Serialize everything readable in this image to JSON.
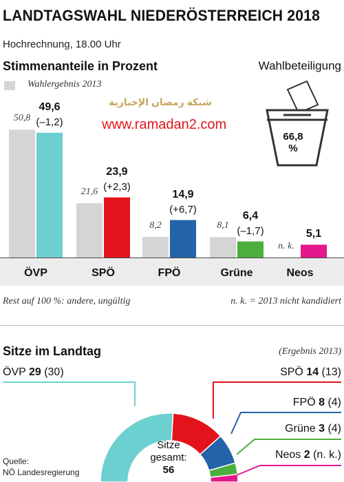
{
  "header": {
    "title": "LANDTAGSWAHL NIEDERÖSTERREICH 2018",
    "subtitle": "Hochrechnung, 18.00 Uhr",
    "section_votes": "Stimmenanteile in Prozent",
    "turnout_label": "Wahlbeteiligung",
    "turnout_value": "66,8",
    "turnout_unit": "%",
    "legend_previous": "Wahlergebnis 2013"
  },
  "watermark": {
    "arabic": "شبكة رمضان الإخبارية",
    "url": "www.ramadan2.com"
  },
  "chart_data": [
    {
      "type": "bar",
      "title": "Stimmenanteile in Prozent",
      "categories": [
        "ÖVP",
        "SPÖ",
        "FPÖ",
        "Grüne",
        "Neos"
      ],
      "series": [
        {
          "name": "Wahlergebnis 2013",
          "values": [
            50.8,
            21.6,
            8.2,
            8.1,
            null
          ],
          "labels": [
            "50,8",
            "21,6",
            "8,2",
            "8,1",
            "n. k."
          ],
          "color": "#d5d5d5"
        },
        {
          "values": [
            49.6,
            23.9,
            14.9,
            6.4,
            5.1
          ],
          "labels": [
            "49,6",
            "23,9",
            "14,9",
            "6,4",
            "5,1"
          ],
          "changes": [
            "(–1,2)",
            "(+2,3)",
            "(+6,7)",
            "(–1,7)",
            ""
          ]
        }
      ],
      "colors": [
        "#6dd0d0",
        "#e3131b",
        "#2363a8",
        "#4cae3c",
        "#e5178c"
      ],
      "ylim": [
        0,
        52
      ]
    },
    {
      "type": "pie",
      "title": "Sitze im Landtag",
      "labels": [
        "ÖVP",
        "SPÖ",
        "FPÖ",
        "Grüne",
        "Neos"
      ],
      "values": [
        29,
        14,
        8,
        3,
        2
      ],
      "previous": [
        "(30)",
        "(13)",
        "(4)",
        "(4)",
        "(n. k.)"
      ],
      "colors": [
        "#6dd0d0",
        "#e3131b",
        "#2363a8",
        "#4cae3c",
        "#e5178c"
      ]
    }
  ],
  "footnotes": {
    "rest": "Rest auf 100 %: andere, ungültig",
    "nk": "n. k. = 2013 nicht kandidiert"
  },
  "seats": {
    "section_title": "Sitze im Landtag",
    "note": "(Ergebnis 2013)",
    "center_line1": "Sitze",
    "center_line2": "gesamt:",
    "total": "56"
  },
  "source": {
    "line1": "Quelle:",
    "line2": "NÖ Landesregierung"
  }
}
